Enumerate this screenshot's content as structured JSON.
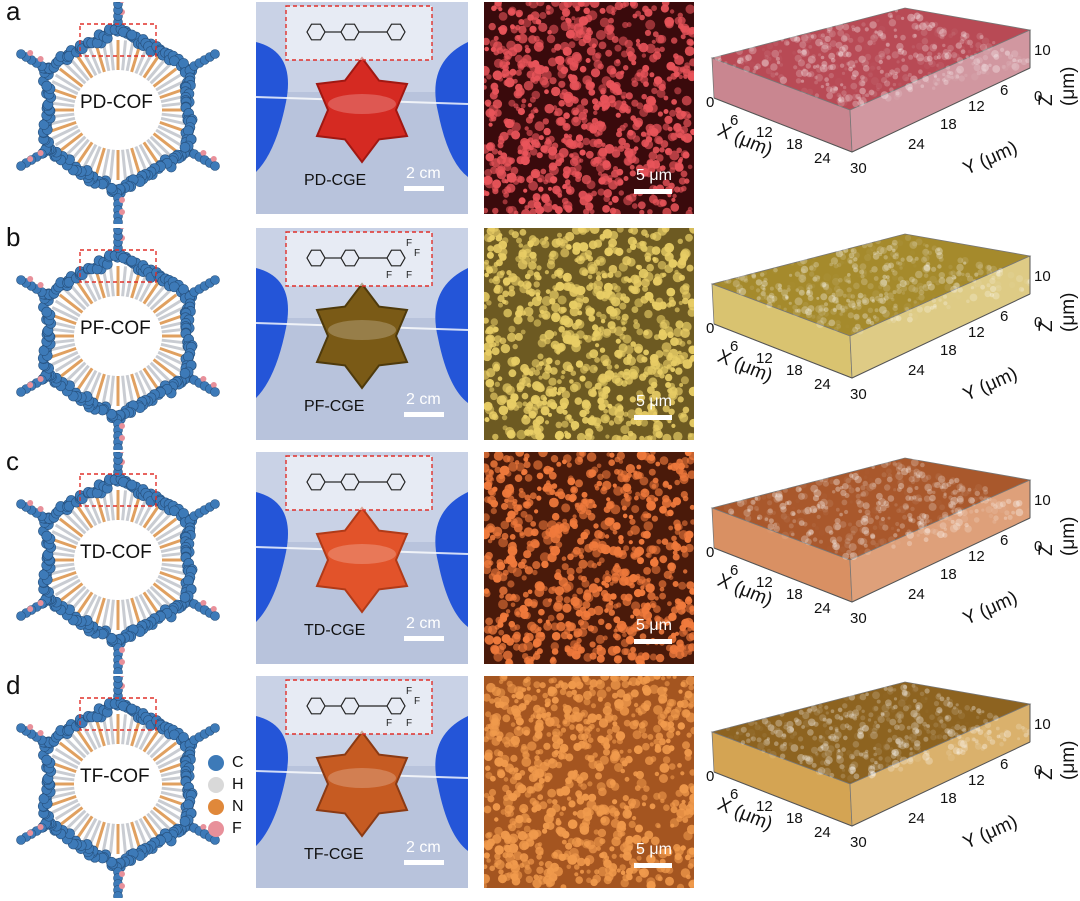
{
  "panels": [
    {
      "letter": "a",
      "cof": "PD-COF",
      "cge": "PD-CGE",
      "scale_photo": "2 cm",
      "scale_sem": "5 μm",
      "film": "#d52a22",
      "film_dark": "#a01812",
      "sem_bg": "#3a0a0c",
      "sem_fg": "#e8545a",
      "map_top": "#b84a55",
      "map_side": "#c98690",
      "fluor": false
    },
    {
      "letter": "b",
      "cof": "PF-COF",
      "cge": "PF-CGE",
      "scale_photo": "2 cm",
      "scale_sem": "5 μm",
      "film": "#7a5a16",
      "film_dark": "#4e3a0c",
      "sem_bg": "#6d5a22",
      "sem_fg": "#e8cd65",
      "map_top": "#a58a2c",
      "map_side": "#d9c370",
      "fluor": true
    },
    {
      "letter": "c",
      "cof": "TD-COF",
      "cge": "TD-CGE",
      "scale_photo": "2 cm",
      "scale_sem": "5 μm",
      "film": "#e2532a",
      "film_dark": "#b03a18",
      "sem_bg": "#4a1a0a",
      "sem_fg": "#f07a3c",
      "map_top": "#a9582c",
      "map_side": "#d99063",
      "fluor": false
    },
    {
      "letter": "d",
      "cof": "TF-COF",
      "cge": "TF-CGE",
      "scale_photo": "2 cm",
      "scale_sem": "5 μm",
      "film": "#c65b22",
      "film_dark": "#8a3a14",
      "sem_bg": "#a45520",
      "sem_fg": "#f09a4c",
      "map_top": "#8d6320",
      "map_side": "#d4a453",
      "fluor": true
    }
  ],
  "axes": {
    "x_ticks": [
      "0",
      "6",
      "12",
      "18",
      "24",
      "30"
    ],
    "y_ticks": [
      "6",
      "12",
      "18",
      "24"
    ],
    "z_ticks": [
      "10",
      "0"
    ],
    "x_title": "X (μm)",
    "y_title": "Y (μm)",
    "z_title": "Z (μm)"
  },
  "legend": [
    {
      "label": "C",
      "color": "#3d7ab8"
    },
    {
      "label": "H",
      "color": "#d9d9d9"
    },
    {
      "label": "N",
      "color": "#e0883a"
    },
    {
      "label": "F",
      "color": "#e8909a"
    }
  ]
}
